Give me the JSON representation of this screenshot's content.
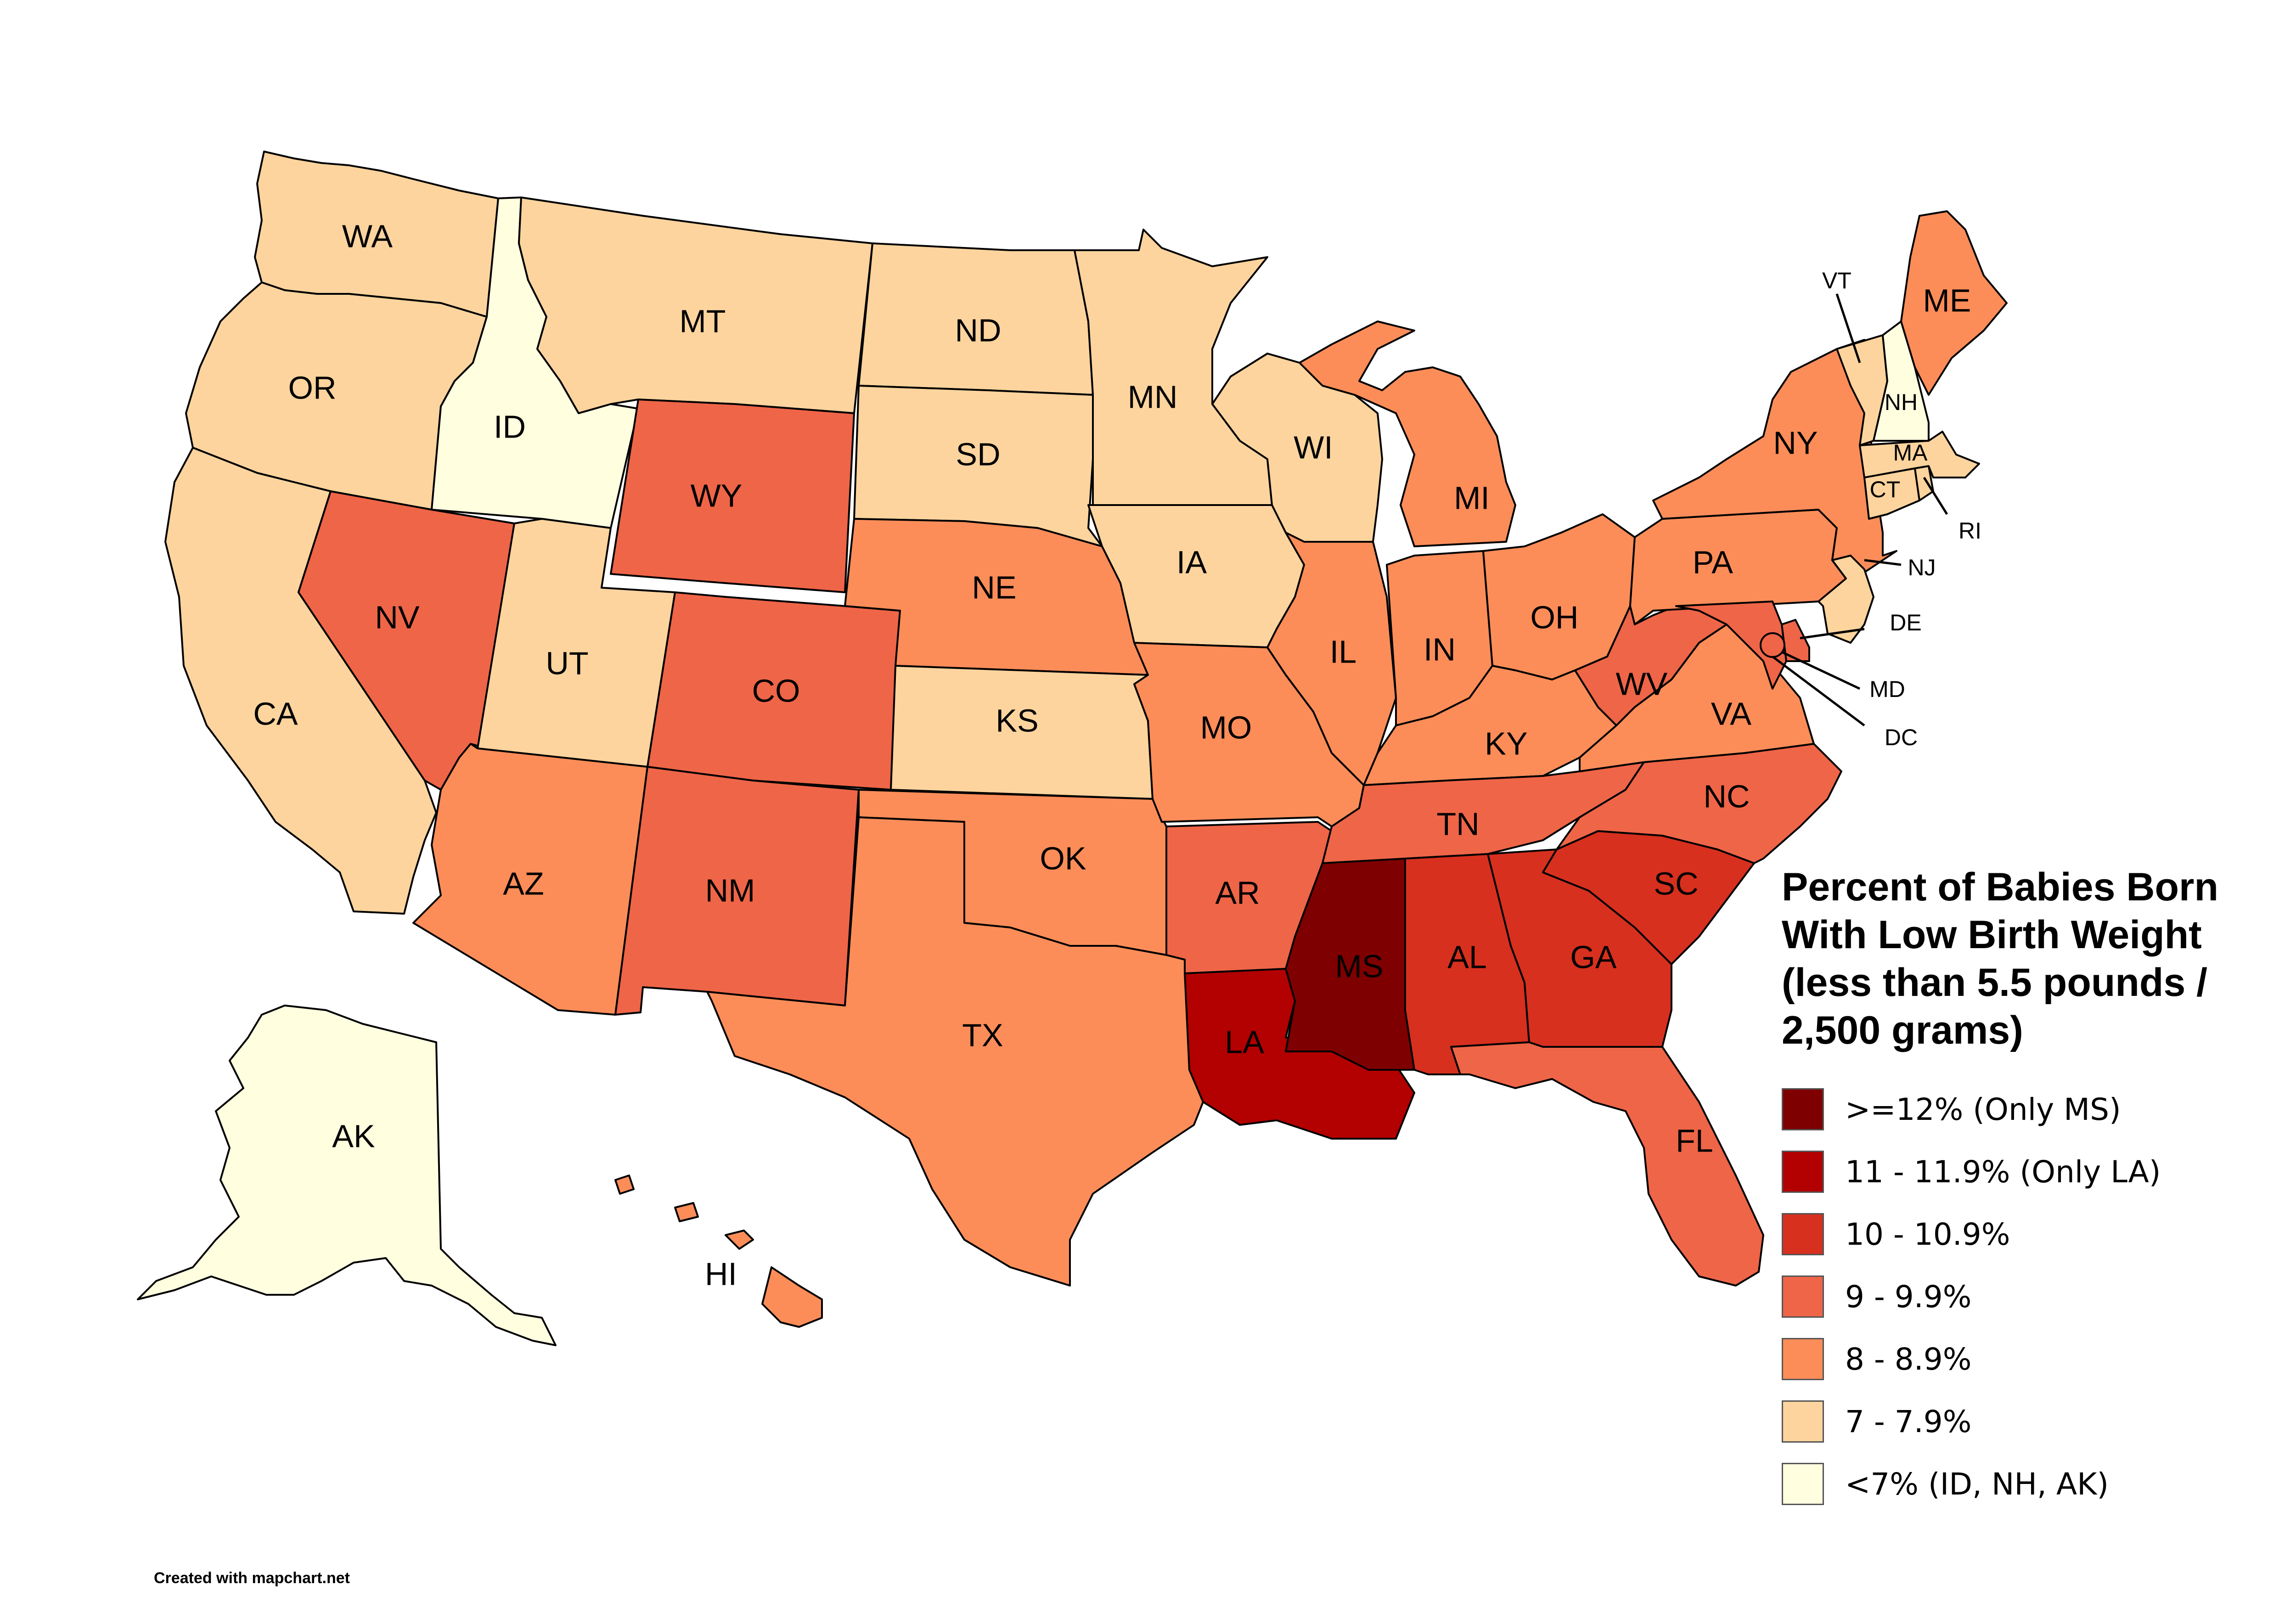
{
  "map": {
    "title": "Percent of Babies Born With Low Birth Weight (less than 5.5 pounds / 2,500 grams)",
    "credit": "Created with mapchart.net",
    "colors": {
      "ms": "#7f0000",
      "la": "#b30000",
      "c10": "#d7301f",
      "c9": "#ef6548",
      "c8": "#fc8d59",
      "c7": "#fdd49e",
      "c6": "#ffffe0"
    },
    "legend": [
      {
        "label": ">=12% (Only MS)",
        "color": "#7f0000"
      },
      {
        "label": "11 - 11.9% (Only LA)",
        "color": "#b30000"
      },
      {
        "label": "10 - 10.9%",
        "color": "#d7301f"
      },
      {
        "label": "9 - 9.9%",
        "color": "#ef6548"
      },
      {
        "label": "8 - 8.9%",
        "color": "#fc8d59"
      },
      {
        "label": "7 - 7.9%",
        "color": "#fdd49e"
      },
      {
        "label": "<7% (ID, NH, AK)",
        "color": "#ffffe0"
      }
    ],
    "states": {
      "WA": {
        "label": "WA",
        "class": "7 - 7.9%"
      },
      "OR": {
        "label": "OR",
        "class": "7 - 7.9%"
      },
      "CA": {
        "label": "CA",
        "class": "7 - 7.9%"
      },
      "ID": {
        "label": "ID",
        "class": "<7%"
      },
      "NV": {
        "label": "NV",
        "class": "9 - 9.9%"
      },
      "MT": {
        "label": "MT",
        "class": "7 - 7.9%"
      },
      "WY": {
        "label": "WY",
        "class": "9 - 9.9%"
      },
      "UT": {
        "label": "UT",
        "class": "7 - 7.9%"
      },
      "AZ": {
        "label": "AZ",
        "class": "8 - 8.9%"
      },
      "CO": {
        "label": "CO",
        "class": "9 - 9.9%"
      },
      "NM": {
        "label": "NM",
        "class": "9 - 9.9%"
      },
      "ND": {
        "label": "ND",
        "class": "7 - 7.9%"
      },
      "SD": {
        "label": "SD",
        "class": "7 - 7.9%"
      },
      "NE": {
        "label": "NE",
        "class": "8 - 8.9%"
      },
      "KS": {
        "label": "KS",
        "class": "7 - 7.9%"
      },
      "OK": {
        "label": "OK",
        "class": "8 - 8.9%"
      },
      "TX": {
        "label": "TX",
        "class": "8 - 8.9%"
      },
      "MN": {
        "label": "MN",
        "class": "7 - 7.9%"
      },
      "IA": {
        "label": "IA",
        "class": "7 - 7.9%"
      },
      "MO": {
        "label": "MO",
        "class": "8 - 8.9%"
      },
      "AR": {
        "label": "AR",
        "class": "9 - 9.9%"
      },
      "LA": {
        "label": "LA",
        "class": "11 - 11.9%"
      },
      "WI": {
        "label": "WI",
        "class": "7 - 7.9%"
      },
      "IL": {
        "label": "IL",
        "class": "8 - 8.9%"
      },
      "MI": {
        "label": "MI",
        "class": "8 - 8.9%"
      },
      "IN": {
        "label": "IN",
        "class": "8 - 8.9%"
      },
      "OH": {
        "label": "OH",
        "class": "8 - 8.9%"
      },
      "KY": {
        "label": "KY",
        "class": "8 - 8.9%"
      },
      "TN": {
        "label": "TN",
        "class": "9 - 9.9%"
      },
      "MS": {
        "label": "MS",
        "class": ">=12%"
      },
      "AL": {
        "label": "AL",
        "class": "10 - 10.9%"
      },
      "GA": {
        "label": "GA",
        "class": "10 - 10.9%"
      },
      "FL": {
        "label": "FL",
        "class": "9 - 9.9%"
      },
      "SC": {
        "label": "SC",
        "class": "10 - 10.9%"
      },
      "NC": {
        "label": "NC",
        "class": "9 - 9.9%"
      },
      "VA": {
        "label": "VA",
        "class": "8 - 8.9%"
      },
      "WV": {
        "label": "WV",
        "class": "9 - 9.9%"
      },
      "PA": {
        "label": "PA",
        "class": "8 - 8.9%"
      },
      "NY": {
        "label": "NY",
        "class": "8 - 8.9%"
      },
      "ME": {
        "label": "ME",
        "class": "8 - 8.9%"
      },
      "VT": {
        "label": "VT",
        "class": "7 - 7.9%"
      },
      "NH": {
        "label": "NH",
        "class": "<7%"
      },
      "MA": {
        "label": "MA",
        "class": "7 - 7.9%"
      },
      "CT": {
        "label": "CT",
        "class": "7 - 7.9%"
      },
      "RI": {
        "label": "RI",
        "class": "7 - 7.9%"
      },
      "NJ": {
        "label": "NJ",
        "class": "7 - 7.9%"
      },
      "DE": {
        "label": "DE",
        "class": "9 - 9.9%"
      },
      "MD": {
        "label": "MD",
        "class": "9 - 9.9%"
      },
      "DC": {
        "label": "DC",
        "class": "9 - 9.9%"
      },
      "AK": {
        "label": "AK",
        "class": "<7%"
      },
      "HI": {
        "label": "HI",
        "class": "8 - 8.9%"
      }
    }
  }
}
